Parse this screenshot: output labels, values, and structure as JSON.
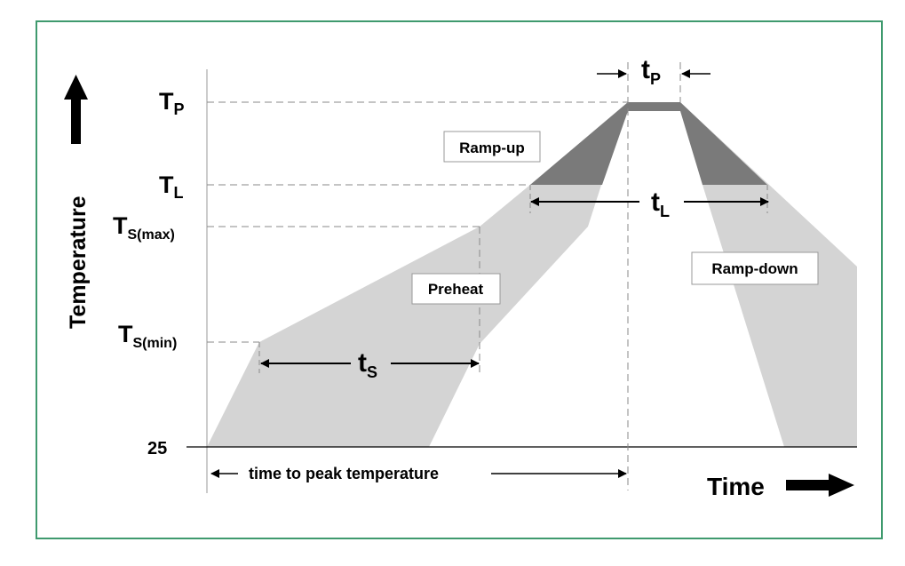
{
  "labels": {
    "tp_level": "T",
    "tp_level_sub": "P",
    "tl_level": "T",
    "tl_level_sub": "L",
    "ts_max": "T",
    "ts_max_sub": "S(max)",
    "ts_min": "T",
    "ts_min_sub": "S(min)",
    "room": "25",
    "y_axis": "Temperature",
    "x_axis": "Time",
    "t_p": "t",
    "t_p_sub": "P",
    "t_l": "t",
    "t_l_sub": "L",
    "t_s": "t",
    "t_s_sub": "S",
    "ramp_up": "Ramp-up",
    "ramp_down": "Ramp-down",
    "preheat": "Preheat",
    "time_to_peak": "time to peak temperature"
  },
  "colors": {
    "frame": "#3f9a6e",
    "light_fill": "#d4d4d4",
    "dark_fill": "#7a7a7a",
    "dash": "#8a8a8a"
  }
}
